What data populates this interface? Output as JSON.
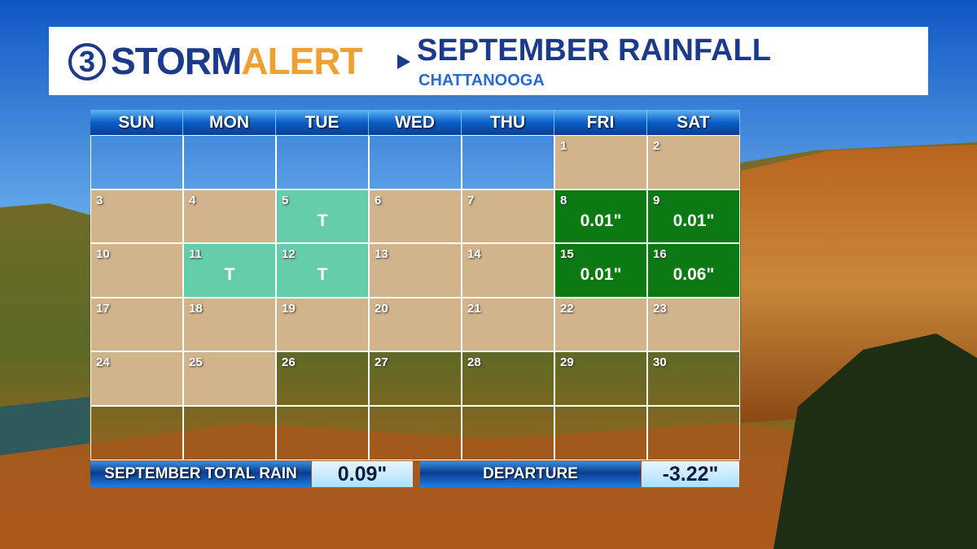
{
  "header": {
    "logo_number": "3",
    "logo_storm": "STORM",
    "logo_alert": "ALERT",
    "title": "SEPTEMBER RAINFALL",
    "subtitle": "CHATTANOOGA"
  },
  "calendar": {
    "weekdays": [
      "SUN",
      "MON",
      "TUE",
      "WED",
      "THU",
      "FRI",
      "SAT"
    ],
    "weeks": [
      [
        null,
        null,
        null,
        null,
        null,
        {
          "day": 1,
          "fill": "#d2b48c"
        },
        {
          "day": 2,
          "fill": "#d2b48c"
        }
      ],
      [
        {
          "day": 3,
          "fill": "#d2b48c"
        },
        {
          "day": 4,
          "fill": "#d2b48c"
        },
        {
          "day": 5,
          "rain": "T",
          "fill": "#66cdaa"
        },
        {
          "day": 6,
          "fill": "#d2b48c"
        },
        {
          "day": 7,
          "fill": "#d2b48c"
        },
        {
          "day": 8,
          "rain": "0.01\"",
          "fill": "#0b7a12"
        },
        {
          "day": 9,
          "rain": "0.01\"",
          "fill": "#0b7a12"
        }
      ],
      [
        {
          "day": 10,
          "fill": "#d2b48c"
        },
        {
          "day": 11,
          "rain": "T",
          "fill": "#66cdaa"
        },
        {
          "day": 12,
          "rain": "T",
          "fill": "#66cdaa"
        },
        {
          "day": 13,
          "fill": "#d2b48c"
        },
        {
          "day": 14,
          "fill": "#d2b48c"
        },
        {
          "day": 15,
          "rain": "0.01\"",
          "fill": "#0b7a12"
        },
        {
          "day": 16,
          "rain": "0.06\"",
          "fill": "#0b7a12"
        }
      ],
      [
        {
          "day": 17,
          "fill": "#d2b48c"
        },
        {
          "day": 18,
          "fill": "#d2b48c"
        },
        {
          "day": 19,
          "fill": "#d2b48c"
        },
        {
          "day": 20,
          "fill": "#d2b48c"
        },
        {
          "day": 21,
          "fill": "#d2b48c"
        },
        {
          "day": 22,
          "fill": "#d2b48c"
        },
        {
          "day": 23,
          "fill": "#d2b48c"
        }
      ],
      [
        {
          "day": 24,
          "fill": "#d2b48c"
        },
        {
          "day": 25,
          "fill": "#d2b48c"
        },
        {
          "day": 26
        },
        {
          "day": 27
        },
        {
          "day": 28
        },
        {
          "day": 29
        },
        {
          "day": 30
        }
      ],
      [
        null,
        null,
        null,
        null,
        null,
        null,
        null
      ]
    ]
  },
  "summary": {
    "total_label": "SEPTEMBER TOTAL RAIN",
    "total_value": "0.09\"",
    "departure_label": "DEPARTURE",
    "departure_value": "-3.22\""
  }
}
